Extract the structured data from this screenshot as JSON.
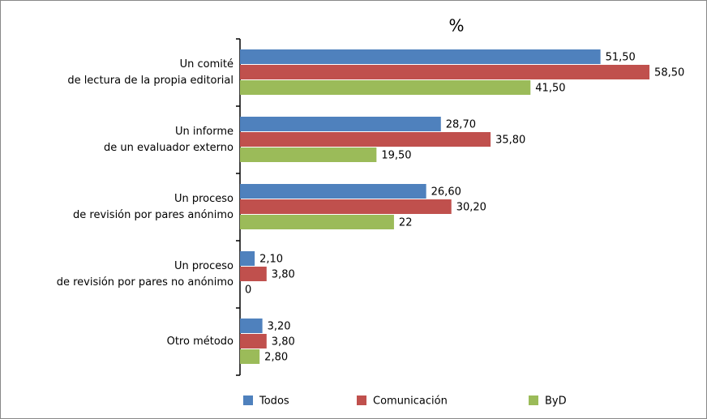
{
  "chart_data": {
    "type": "barh",
    "title": "%",
    "categories": [
      [
        "Un comité",
        "de lectura de la propia editorial"
      ],
      [
        "Un informe",
        "de un evaluador externo"
      ],
      [
        "Un proceso",
        "de revisión por pares anónimo"
      ],
      [
        "Un proceso",
        "de revisión por pares no anónimo"
      ],
      [
        "Otro método"
      ]
    ],
    "series": [
      {
        "name": "Todos",
        "color": "#4f81bd",
        "values": [
          51.5,
          28.7,
          26.6,
          2.1,
          3.2
        ],
        "value_labels": [
          "51,50",
          "28,70",
          "26,60",
          "2,10",
          "3,20"
        ]
      },
      {
        "name": "Comunicación",
        "color": "#c0504d",
        "values": [
          58.5,
          35.8,
          30.2,
          3.8,
          3.8
        ],
        "value_labels": [
          "58,50",
          "35,80",
          "30,20",
          "3,80",
          "3,80"
        ]
      },
      {
        "name": "ByD",
        "color": "#9bbb59",
        "values": [
          41.5,
          19.5,
          22,
          0,
          2.8
        ],
        "value_labels": [
          "41,50",
          "19,50",
          "22",
          "0",
          "2,80"
        ]
      }
    ],
    "xlim": [
      0,
      60
    ],
    "legend": "bottom"
  }
}
